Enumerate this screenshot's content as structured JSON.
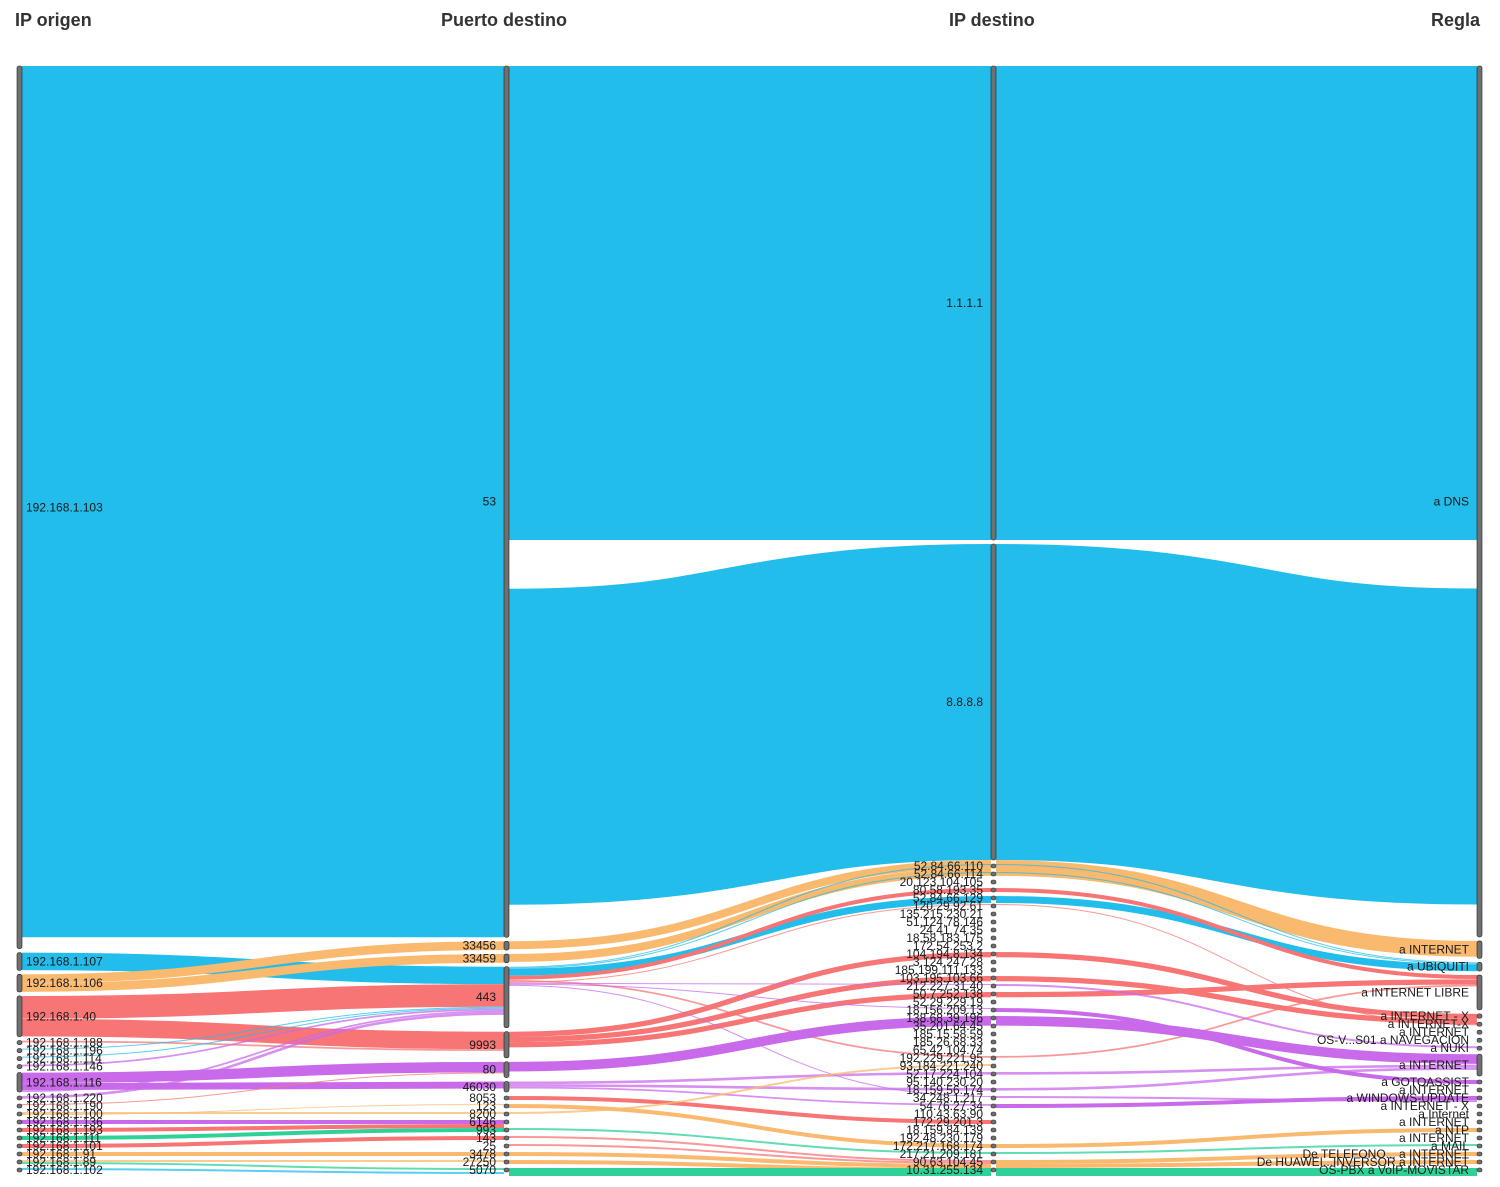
{
  "chart_data": {
    "type": "sankey",
    "columns": [
      "IP origen",
      "Puerto destino",
      "IP destino",
      "Regla"
    ],
    "colors": {
      "dns": "#22BDEB",
      "internet": "#F9B96E",
      "libre": "#F77575",
      "purple": "#C96AEB",
      "green": "#2ED198",
      "node": "#707070"
    },
    "nodes": [
      {
        "id": "s103",
        "col": 0,
        "label": "192.168.1.103",
        "value": 1000
      },
      {
        "id": "s107",
        "col": 0,
        "label": "192.168.1.107",
        "value": 20
      },
      {
        "id": "s106",
        "col": 0,
        "label": "192.168.1.106",
        "value": 20
      },
      {
        "id": "s40",
        "col": 0,
        "label": "192.168.1.40",
        "value": 46
      },
      {
        "id": "s188",
        "col": 0,
        "label": "192.168.1.188",
        "value": 2
      },
      {
        "id": "s196",
        "col": 0,
        "label": "192.168.1.196",
        "value": 1
      },
      {
        "id": "s114",
        "col": 0,
        "label": "192.168.1.114",
        "value": 1
      },
      {
        "id": "s146",
        "col": 0,
        "label": "192.168.1.146",
        "value": 2
      },
      {
        "id": "s116",
        "col": 0,
        "label": "192.168.1.116",
        "value": 22
      },
      {
        "id": "s220",
        "col": 0,
        "label": "192.168.1.220",
        "value": 3
      },
      {
        "id": "s190",
        "col": 0,
        "label": "192.168.1.190",
        "value": 1
      },
      {
        "id": "s100",
        "col": 0,
        "label": "192.168.1.100",
        "value": 4
      },
      {
        "id": "s136",
        "col": 0,
        "label": "192.168.1.136",
        "value": 0.5
      },
      {
        "id": "s193",
        "col": 0,
        "label": "192.168.1.193",
        "value": 0.5
      },
      {
        "id": "s111",
        "col": 0,
        "label": "192.168.1.111",
        "value": 0.5
      },
      {
        "id": "s101",
        "col": 0,
        "label": "192.168.1.101",
        "value": 0.5
      },
      {
        "id": "s91",
        "col": 0,
        "label": "192.168.1.91",
        "value": 1
      },
      {
        "id": "s89",
        "col": 0,
        "label": "192.168.1.89",
        "value": 2
      },
      {
        "id": "s102",
        "col": 0,
        "label": "192.168.1.102",
        "value": 2
      },
      {
        "id": "p53",
        "col": 1,
        "label": "53",
        "value": 1000
      },
      {
        "id": "p33456",
        "col": 1,
        "label": "33456",
        "value": 10
      },
      {
        "id": "p33459",
        "col": 1,
        "label": "33459",
        "value": 10
      },
      {
        "id": "p443",
        "col": 1,
        "label": "443",
        "value": 70
      },
      {
        "id": "p9993",
        "col": 1,
        "label": "9993",
        "value": 30
      },
      {
        "id": "p80",
        "col": 1,
        "label": "80",
        "value": 18
      },
      {
        "id": "p46030",
        "col": 1,
        "label": "46030",
        "value": 12
      },
      {
        "id": "p8053",
        "col": 1,
        "label": "8053",
        "value": 1
      },
      {
        "id": "p123",
        "col": 1,
        "label": "123",
        "value": 0.5
      },
      {
        "id": "p8200",
        "col": 1,
        "label": "8200",
        "value": 2
      },
      {
        "id": "p6146",
        "col": 1,
        "label": "6146",
        "value": 0.5
      },
      {
        "id": "p993",
        "col": 1,
        "label": "993",
        "value": 0.5
      },
      {
        "id": "p143",
        "col": 1,
        "label": "143",
        "value": 0.5
      },
      {
        "id": "p25",
        "col": 1,
        "label": "25",
        "value": 0.5
      },
      {
        "id": "p3478",
        "col": 1,
        "label": "3478",
        "value": 1
      },
      {
        "id": "p27250",
        "col": 1,
        "label": "27250",
        "value": 1
      },
      {
        "id": "p5070",
        "col": 1,
        "label": "5070",
        "value": 1
      },
      {
        "id": "d1111",
        "col": 2,
        "label": "1.1.1.1",
        "value": 600
      },
      {
        "id": "d8888",
        "col": 2,
        "label": "8.8.8.8",
        "value": 400
      },
      {
        "id": "d52110",
        "col": 2,
        "label": "52.84.66.110",
        "value": 1
      },
      {
        "id": "d52114",
        "col": 2,
        "label": "52.84.66.114",
        "value": 1
      },
      {
        "id": "d20123",
        "col": 2,
        "label": "20.123.104.105",
        "value": 1
      },
      {
        "id": "d80",
        "col": 2,
        "label": "80.58.193.35",
        "value": 5
      },
      {
        "id": "d52129",
        "col": 2,
        "label": "52.84.66.129",
        "value": 1
      },
      {
        "id": "d1202",
        "col": 2,
        "label": "120.29.92.61",
        "value": 1
      },
      {
        "id": "d135",
        "col": 2,
        "label": "135.215.230.21",
        "value": 1
      },
      {
        "id": "d5112",
        "col": 2,
        "label": "51.124.78.146",
        "value": 1
      },
      {
        "id": "d2441",
        "col": 2,
        "label": "24.41.74.35",
        "value": 1
      },
      {
        "id": "d1835",
        "col": 2,
        "label": "18.58.183.175",
        "value": 1
      },
      {
        "id": "d1725",
        "col": 2,
        "label": "172.54.253.2",
        "value": 1
      },
      {
        "id": "d1041",
        "col": 2,
        "label": "104.194.8.134",
        "value": 1
      },
      {
        "id": "d3124",
        "col": 2,
        "label": "3.124.247.28",
        "value": 1
      },
      {
        "id": "d1851",
        "col": 2,
        "label": "185.199.111.133",
        "value": 1
      },
      {
        "id": "d1031",
        "col": 2,
        "label": "103.195.103.66",
        "value": 1
      },
      {
        "id": "d2122",
        "col": 2,
        "label": "212.227.31.40",
        "value": 1
      },
      {
        "id": "d5072",
        "col": 2,
        "label": "50.7.252.138",
        "value": 1
      },
      {
        "id": "d5229",
        "col": 2,
        "label": "52.29.229.19",
        "value": 1
      },
      {
        "id": "d1815",
        "col": 2,
        "label": "18.156.209.13",
        "value": 1
      },
      {
        "id": "d1386",
        "col": 2,
        "label": "138.68.39.196",
        "value": 5
      },
      {
        "id": "d3526",
        "col": 2,
        "label": "35.201.64.45",
        "value": 1
      },
      {
        "id": "d1852",
        "col": 2,
        "label": "185.15.58.59",
        "value": 1
      },
      {
        "id": "d1855",
        "col": 2,
        "label": "185.26.68.33",
        "value": 1
      },
      {
        "id": "d6542",
        "col": 2,
        "label": "65.42.104.74",
        "value": 1
      },
      {
        "id": "d1922",
        "col": 2,
        "label": "192.229.221.95",
        "value": 1
      },
      {
        "id": "d9316",
        "col": 2,
        "label": "93.184.221.240",
        "value": 1
      },
      {
        "id": "d5217",
        "col": 2,
        "label": "52.17.224.104",
        "value": 1
      },
      {
        "id": "d9514",
        "col": 2,
        "label": "95.140.230.20",
        "value": 1
      },
      {
        "id": "d1819",
        "col": 2,
        "label": "18.159.56.174",
        "value": 1
      },
      {
        "id": "d3424",
        "col": 2,
        "label": "34.248.1.217",
        "value": 1
      },
      {
        "id": "d5476",
        "col": 2,
        "label": "54.76.27.34",
        "value": 1
      },
      {
        "id": "d1104",
        "col": 2,
        "label": "110.43.63.90",
        "value": 1
      },
      {
        "id": "d1729",
        "col": 2,
        "label": "172.29.201.3",
        "value": 1
      },
      {
        "id": "d1841",
        "col": 2,
        "label": "18.159.84.139",
        "value": 1
      },
      {
        "id": "d1924",
        "col": 2,
        "label": "192.48.230.179",
        "value": 1
      },
      {
        "id": "d1722",
        "col": 2,
        "label": "172.217.168.174",
        "value": 1
      },
      {
        "id": "d2172",
        "col": 2,
        "label": "217.21.209.181",
        "value": 1
      },
      {
        "id": "d9063",
        "col": 2,
        "label": "90.63.104.45",
        "value": 1
      },
      {
        "id": "d1031b",
        "col": 2,
        "label": "10.31.255.134",
        "value": 1
      },
      {
        "id": "r_dns",
        "col": 3,
        "label": "a DNS",
        "value": 1000
      },
      {
        "id": "r_inet1",
        "col": 3,
        "label": "a INTERNET",
        "value": 20
      },
      {
        "id": "r_ubi",
        "col": 3,
        "label": "a UBIQUITI",
        "value": 10
      },
      {
        "id": "r_libre",
        "col": 3,
        "label": "a INTERNET LIBRE",
        "value": 40
      },
      {
        "id": "r_aspx",
        "col": 3,
        "label": "a INTERNET - X",
        "value": 5
      },
      {
        "id": "r_aspx2",
        "col": 3,
        "label": "a INTERNET-X",
        "value": 2
      },
      {
        "id": "r_os_inet",
        "col": 3,
        "label": "a INTERNET",
        "value": 1
      },
      {
        "id": "r_os_nav",
        "col": 3,
        "label": "OS-V...S01 a NAVEGACION",
        "value": 1
      },
      {
        "id": "r_nuki",
        "col": 3,
        "label": "a NUKI",
        "value": 2
      },
      {
        "id": "r_os_inet2",
        "col": 3,
        "label": "a INTERNET",
        "value": 25
      },
      {
        "id": "r_goto",
        "col": 3,
        "label": "a GOTOASSIST",
        "value": 1
      },
      {
        "id": "r_lav",
        "col": 3,
        "label": "a INTERNET",
        "value": 1
      },
      {
        "id": "r_winupd",
        "col": 3,
        "label": "a WINDOWS-UPDATE",
        "value": 2
      },
      {
        "id": "r_aspx3",
        "col": 3,
        "label": "a INTERNET - X",
        "value": 1
      },
      {
        "id": "r_os_internet",
        "col": 3,
        "label": "a Internet",
        "value": 0.5
      },
      {
        "id": "r_vo",
        "col": 3,
        "label": "a INTERNET",
        "value": 0.5
      },
      {
        "id": "r_ntp",
        "col": 3,
        "label": "a NTP",
        "value": 0.5
      },
      {
        "id": "r_dios",
        "col": 3,
        "label": "a INTERNET",
        "value": 0.5
      },
      {
        "id": "r_mail",
        "col": 3,
        "label": "a MAIL",
        "value": 0.5
      },
      {
        "id": "r_tel",
        "col": 3,
        "label": "De TELEFONO... a INTERNET",
        "value": 1
      },
      {
        "id": "r_hua",
        "col": 3,
        "label": "De HUAWEI...INVERSOR a INTERNET",
        "value": 1
      },
      {
        "id": "r_pbx",
        "col": 3,
        "label": "OS-PBX a VoIP-MOVISTAR",
        "value": 1
      }
    ],
    "links": [
      {
        "s": "s103",
        "t": "p53",
        "v": 1000,
        "c": "dns"
      },
      {
        "s": "p53",
        "t": "d1111",
        "v": 600,
        "c": "dns"
      },
      {
        "s": "p53",
        "t": "d8888",
        "v": 400,
        "c": "dns"
      },
      {
        "s": "d1111",
        "t": "r_dns",
        "v": 600,
        "c": "dns"
      },
      {
        "s": "d8888",
        "t": "r_dns",
        "v": 400,
        "c": "dns"
      },
      {
        "s": "s107",
        "t": "p443",
        "v": 20,
        "c": "dns"
      },
      {
        "s": "s106",
        "t": "p33456",
        "v": 10,
        "c": "internet"
      },
      {
        "s": "s106",
        "t": "p33459",
        "v": 10,
        "c": "internet"
      },
      {
        "s": "p33456",
        "t": "d8888",
        "v": 10,
        "c": "internet"
      },
      {
        "s": "p33459",
        "t": "d8888",
        "v": 10,
        "c": "internet"
      },
      {
        "s": "d8888",
        "t": "r_inet1",
        "v": 20,
        "c": "internet"
      },
      {
        "s": "p443",
        "t": "d52110",
        "v": 1,
        "c": "dns"
      },
      {
        "s": "p443",
        "t": "d52114",
        "v": 1,
        "c": "dns"
      },
      {
        "s": "p443",
        "t": "d52129",
        "v": 8,
        "c": "dns"
      },
      {
        "s": "d52110",
        "t": "r_ubi",
        "v": 1,
        "c": "dns"
      },
      {
        "s": "d52114",
        "t": "r_ubi",
        "v": 1,
        "c": "dns"
      },
      {
        "s": "d52129",
        "t": "r_ubi",
        "v": 8,
        "c": "dns"
      },
      {
        "s": "s40",
        "t": "p443",
        "v": 26,
        "c": "libre"
      },
      {
        "s": "s40",
        "t": "p9993",
        "v": 20,
        "c": "libre"
      },
      {
        "s": "p443",
        "t": "d80",
        "v": 5,
        "c": "libre"
      },
      {
        "s": "d80",
        "t": "r_libre",
        "v": 5,
        "c": "libre"
      },
      {
        "s": "p9993",
        "t": "d1041",
        "v": 6,
        "c": "libre"
      },
      {
        "s": "p9993",
        "t": "d1031",
        "v": 6,
        "c": "libre"
      },
      {
        "s": "p9993",
        "t": "d5072",
        "v": 6,
        "c": "libre"
      },
      {
        "s": "d1041",
        "t": "r_aspx",
        "v": 6,
        "c": "libre"
      },
      {
        "s": "d1031",
        "t": "r_aspx",
        "v": 6,
        "c": "libre"
      },
      {
        "s": "d5072",
        "t": "r_libre",
        "v": 6,
        "c": "libre"
      },
      {
        "s": "p443",
        "t": "d1922",
        "v": 2,
        "c": "libre"
      },
      {
        "s": "d1922",
        "t": "r_libre",
        "v": 2,
        "c": "libre"
      },
      {
        "s": "p443",
        "t": "d1202",
        "v": 1,
        "c": "libre"
      },
      {
        "s": "d1202",
        "t": "r_aspx",
        "v": 1,
        "c": "libre"
      },
      {
        "s": "s188",
        "t": "p9993",
        "v": 2,
        "c": "libre"
      },
      {
        "s": "s196",
        "t": "p443",
        "v": 1,
        "c": "dns"
      },
      {
        "s": "s114",
        "t": "p443",
        "v": 1,
        "c": "dns"
      },
      {
        "s": "s146",
        "t": "p443",
        "v": 2,
        "c": "purple"
      },
      {
        "s": "s116",
        "t": "p80",
        "v": 12,
        "c": "purple"
      },
      {
        "s": "s116",
        "t": "p46030",
        "v": 8,
        "c": "purple"
      },
      {
        "s": "s116",
        "t": "p443",
        "v": 2,
        "c": "purple"
      },
      {
        "s": "s220",
        "t": "p443",
        "v": 3,
        "c": "purple"
      },
      {
        "s": "p80",
        "t": "d1386",
        "v": 12,
        "c": "purple"
      },
      {
        "s": "d1386",
        "t": "r_os_inet2",
        "v": 12,
        "c": "purple"
      },
      {
        "s": "p46030",
        "t": "d5217",
        "v": 3,
        "c": "purple"
      },
      {
        "s": "p46030",
        "t": "d1819",
        "v": 3,
        "c": "purple"
      },
      {
        "s": "p46030",
        "t": "d5476",
        "v": 2,
        "c": "purple"
      },
      {
        "s": "d5217",
        "t": "r_os_inet2",
        "v": 3,
        "c": "purple"
      },
      {
        "s": "d1819",
        "t": "r_os_inet2",
        "v": 3,
        "c": "purple"
      },
      {
        "s": "d5476",
        "t": "r_winupd",
        "v": 2,
        "c": "purple"
      },
      {
        "s": "p443",
        "t": "d2122",
        "v": 1,
        "c": "purple"
      },
      {
        "s": "p443",
        "t": "d1815",
        "v": 1,
        "c": "purple"
      },
      {
        "s": "p443",
        "t": "d3424",
        "v": 1,
        "c": "purple"
      },
      {
        "s": "d2122",
        "t": "r_nuki",
        "v": 1,
        "c": "purple"
      },
      {
        "s": "d1815",
        "t": "r_goto",
        "v": 1,
        "c": "purple"
      },
      {
        "s": "d3424",
        "t": "r_winupd",
        "v": 1,
        "c": "purple"
      },
      {
        "s": "s190",
        "t": "p80",
        "v": 1,
        "c": "libre"
      },
      {
        "s": "p8053",
        "t": "d1729",
        "v": 1,
        "c": "libre"
      },
      {
        "s": "s100",
        "t": "p8200",
        "v": 2,
        "c": "internet"
      },
      {
        "s": "s100",
        "t": "p123",
        "v": 1,
        "c": "internet"
      },
      {
        "s": "p8200",
        "t": "d1922",
        "v": 1,
        "c": "internet"
      },
      {
        "s": "p123",
        "t": "d1722",
        "v": 1,
        "c": "internet"
      },
      {
        "s": "d1722",
        "t": "r_ntp",
        "v": 1,
        "c": "internet"
      },
      {
        "s": "s136",
        "t": "p6146",
        "v": 0.5,
        "c": "purple"
      },
      {
        "s": "s193",
        "t": "p6146",
        "v": 0.5,
        "c": "libre"
      },
      {
        "s": "s111",
        "t": "p993",
        "v": 0.5,
        "c": "green"
      },
      {
        "s": "s101",
        "t": "p143",
        "v": 0.5,
        "c": "libre"
      },
      {
        "s": "p993",
        "t": "d2172",
        "v": 0.5,
        "c": "green"
      },
      {
        "s": "p143",
        "t": "d9063",
        "v": 0.5,
        "c": "libre"
      },
      {
        "s": "p25",
        "t": "d9063",
        "v": 0.5,
        "c": "libre"
      },
      {
        "s": "d2172",
        "t": "r_mail",
        "v": 0.5,
        "c": "green"
      },
      {
        "s": "s91",
        "t": "p3478",
        "v": 1,
        "c": "internet"
      },
      {
        "s": "s89",
        "t": "p27250",
        "v": 1,
        "c": "internet"
      },
      {
        "s": "s89",
        "t": "p5070",
        "v": 1,
        "c": "green"
      },
      {
        "s": "s102",
        "t": "p5070",
        "v": 1,
        "c": "dns"
      },
      {
        "s": "p3478",
        "t": "d9063",
        "v": 1,
        "c": "internet"
      },
      {
        "s": "p27250",
        "t": "d9063",
        "v": 1,
        "c": "internet"
      },
      {
        "s": "p5070",
        "t": "d1031b",
        "v": 2,
        "c": "green"
      },
      {
        "s": "d9063",
        "t": "r_tel",
        "v": 1,
        "c": "internet"
      },
      {
        "s": "d9063",
        "t": "r_hua",
        "v": 1,
        "c": "internet"
      },
      {
        "s": "d1031b",
        "t": "r_pbx",
        "v": 2,
        "c": "green"
      }
    ]
  }
}
